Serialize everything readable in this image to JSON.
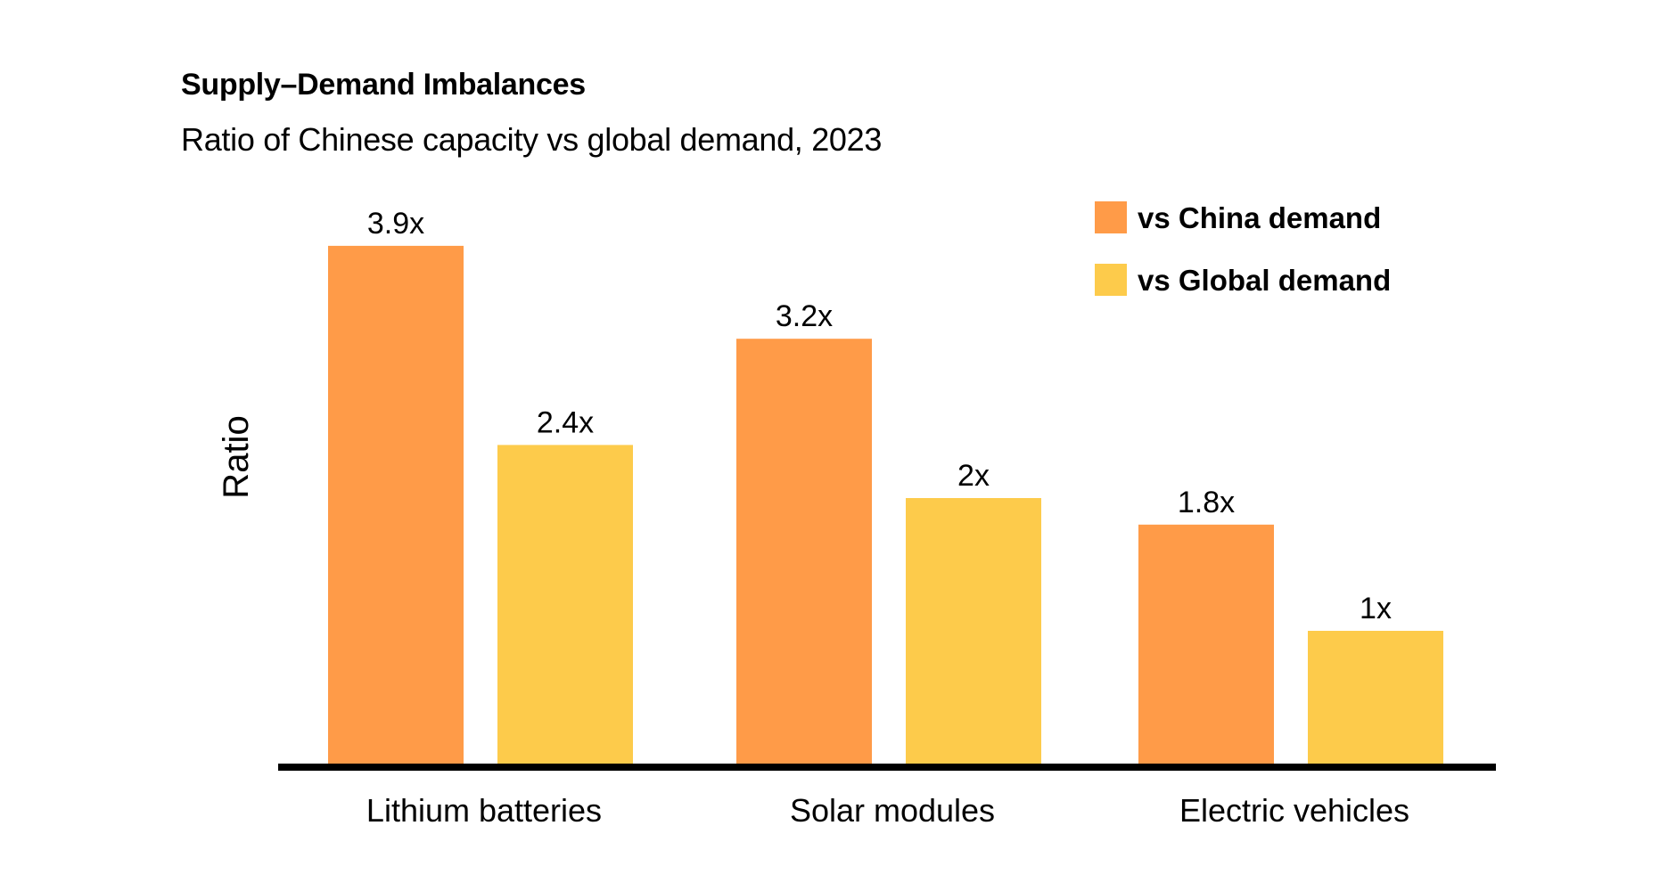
{
  "chart_data": {
    "type": "bar",
    "title": "Supply–Demand Imbalances",
    "subtitle": "Ratio of Chinese capacity vs global demand, 2023",
    "xlabel": "",
    "ylabel": "Ratio",
    "ylim": [
      0,
      4
    ],
    "grid": false,
    "legend_position": "top-right",
    "categories": [
      "Lithium batteries",
      "Solar modules",
      "Electric vehicles"
    ],
    "series": [
      {
        "name": "vs China demand",
        "color": "#FF9B48",
        "values": [
          3.9,
          3.2,
          1.8
        ],
        "labels": [
          "3.9x",
          "3.2x",
          "1.8x"
        ]
      },
      {
        "name": "vs Global demand",
        "color": "#FDCB4B",
        "values": [
          2.4,
          2.0,
          1.0
        ],
        "labels": [
          "2.4x",
          "2x",
          "1x"
        ]
      }
    ]
  }
}
